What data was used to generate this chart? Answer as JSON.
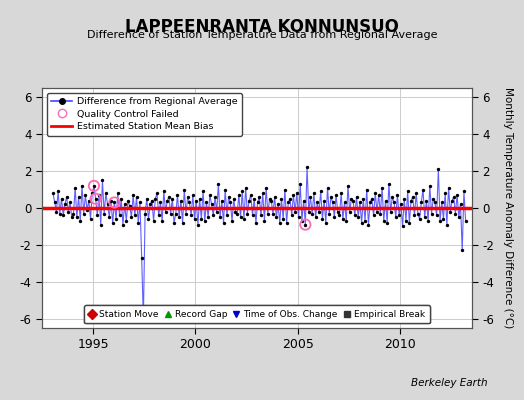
{
  "title": "LAPPEENRANTA KONNUNSUO",
  "subtitle": "Difference of Station Temperature Data from Regional Average",
  "ylabel": "Monthly Temperature Anomaly Difference (°C)",
  "xlabel_note": "Berkeley Earth",
  "ylim": [
    -6.5,
    6.5
  ],
  "yticks": [
    -6,
    -4,
    -2,
    0,
    2,
    4,
    6
  ],
  "xlim": [
    1992.5,
    2013.5
  ],
  "xticks": [
    1995,
    2000,
    2005,
    2010
  ],
  "bias_line": 0.0,
  "line_color": "#4444ff",
  "dot_color": "#000000",
  "bias_color": "#ff0000",
  "qc_color": "#ff69b4",
  "background_color": "#d8d8d8",
  "plot_bg_color": "#ffffff",
  "grid_color": "#cccccc",
  "times": [
    1993.042,
    1993.125,
    1993.208,
    1993.292,
    1993.375,
    1993.458,
    1993.542,
    1993.625,
    1993.708,
    1993.792,
    1993.875,
    1993.958,
    1994.042,
    1994.125,
    1994.208,
    1994.292,
    1994.375,
    1994.458,
    1994.542,
    1994.625,
    1994.708,
    1994.792,
    1994.875,
    1994.958,
    1995.042,
    1995.125,
    1995.208,
    1995.292,
    1995.375,
    1995.458,
    1995.542,
    1995.625,
    1995.708,
    1995.792,
    1995.875,
    1995.958,
    1996.042,
    1996.125,
    1996.208,
    1996.292,
    1996.375,
    1996.458,
    1996.542,
    1996.625,
    1996.708,
    1996.792,
    1996.875,
    1996.958,
    1997.042,
    1997.125,
    1997.208,
    1997.292,
    1997.375,
    1997.458,
    1997.542,
    1997.625,
    1997.708,
    1997.792,
    1997.875,
    1997.958,
    1998.042,
    1998.125,
    1998.208,
    1998.292,
    1998.375,
    1998.458,
    1998.542,
    1998.625,
    1998.708,
    1998.792,
    1998.875,
    1998.958,
    1999.042,
    1999.125,
    1999.208,
    1999.292,
    1999.375,
    1999.458,
    1999.542,
    1999.625,
    1999.708,
    1999.792,
    1999.875,
    1999.958,
    2000.042,
    2000.125,
    2000.208,
    2000.292,
    2000.375,
    2000.458,
    2000.542,
    2000.625,
    2000.708,
    2000.792,
    2000.875,
    2000.958,
    2001.042,
    2001.125,
    2001.208,
    2001.292,
    2001.375,
    2001.458,
    2001.542,
    2001.625,
    2001.708,
    2001.792,
    2001.875,
    2001.958,
    2002.042,
    2002.125,
    2002.208,
    2002.292,
    2002.375,
    2002.458,
    2002.542,
    2002.625,
    2002.708,
    2002.792,
    2002.875,
    2002.958,
    2003.042,
    2003.125,
    2003.208,
    2003.292,
    2003.375,
    2003.458,
    2003.542,
    2003.625,
    2003.708,
    2003.792,
    2003.875,
    2003.958,
    2004.042,
    2004.125,
    2004.208,
    2004.292,
    2004.375,
    2004.458,
    2004.542,
    2004.625,
    2004.708,
    2004.792,
    2004.875,
    2004.958,
    2005.042,
    2005.125,
    2005.208,
    2005.292,
    2005.375,
    2005.458,
    2005.542,
    2005.625,
    2005.708,
    2005.792,
    2005.875,
    2005.958,
    2006.042,
    2006.125,
    2006.208,
    2006.292,
    2006.375,
    2006.458,
    2006.542,
    2006.625,
    2006.708,
    2006.792,
    2006.875,
    2006.958,
    2007.042,
    2007.125,
    2007.208,
    2007.292,
    2007.375,
    2007.458,
    2007.542,
    2007.625,
    2007.708,
    2007.792,
    2007.875,
    2007.958,
    2008.042,
    2008.125,
    2008.208,
    2008.292,
    2008.375,
    2008.458,
    2008.542,
    2008.625,
    2008.708,
    2008.792,
    2008.875,
    2008.958,
    2009.042,
    2009.125,
    2009.208,
    2009.292,
    2009.375,
    2009.458,
    2009.542,
    2009.625,
    2009.708,
    2009.792,
    2009.875,
    2009.958,
    2010.042,
    2010.125,
    2010.208,
    2010.292,
    2010.375,
    2010.458,
    2010.542,
    2010.625,
    2010.708,
    2010.792,
    2010.875,
    2010.958,
    2011.042,
    2011.125,
    2011.208,
    2011.292,
    2011.375,
    2011.458,
    2011.542,
    2011.625,
    2011.708,
    2011.792,
    2011.875,
    2011.958,
    2012.042,
    2012.125,
    2012.208,
    2012.292,
    2012.375,
    2012.458,
    2012.542,
    2012.625,
    2012.708,
    2012.792,
    2012.875,
    2012.958,
    2013.042,
    2013.125,
    2013.208
  ],
  "values": [
    0.8,
    0.3,
    -0.2,
    0.9,
    -0.3,
    0.5,
    -0.4,
    0.2,
    0.6,
    -0.2,
    0.3,
    -0.5,
    -0.3,
    1.1,
    -0.5,
    0.6,
    -0.7,
    1.2,
    -0.3,
    0.7,
    -0.1,
    0.4,
    -0.6,
    0.8,
    1.2,
    0.5,
    -0.4,
    0.7,
    -0.9,
    1.5,
    -0.3,
    0.8,
    0.2,
    -0.5,
    0.4,
    -0.8,
    0.3,
    -0.6,
    0.8,
    -0.4,
    0.5,
    -0.9,
    0.2,
    -0.7,
    0.4,
    0.1,
    -0.5,
    0.7,
    -0.4,
    0.6,
    -0.8,
    0.3,
    -2.7,
    -6.0,
    -0.3,
    0.5,
    -0.6,
    0.2,
    0.4,
    -0.7,
    0.5,
    0.8,
    -0.4,
    0.3,
    -0.7,
    0.9,
    -0.2,
    0.4,
    0.6,
    -0.3,
    0.5,
    -0.8,
    -0.3,
    0.7,
    -0.5,
    0.4,
    -0.8,
    1.0,
    -0.3,
    0.6,
    0.3,
    -0.4,
    0.7,
    -0.6,
    0.4,
    -0.9,
    0.5,
    -0.6,
    0.9,
    -0.7,
    0.3,
    -0.5,
    0.7,
    0.2,
    -0.4,
    0.6,
    -0.2,
    1.3,
    -0.5,
    0.4,
    -0.8,
    1.0,
    -0.4,
    0.6,
    0.3,
    -0.7,
    0.5,
    -0.2,
    -0.3,
    0.7,
    -0.5,
    0.9,
    -0.6,
    1.1,
    -0.3,
    0.4,
    0.7,
    -0.4,
    0.5,
    -0.8,
    0.3,
    0.6,
    -0.4,
    0.8,
    -0.7,
    1.1,
    -0.3,
    0.5,
    0.4,
    -0.3,
    0.6,
    -0.5,
    0.2,
    -0.8,
    0.5,
    -0.6,
    1.0,
    -0.8,
    0.3,
    0.5,
    -0.4,
    0.7,
    -0.2,
    0.8,
    -0.5,
    1.3,
    -0.7,
    0.4,
    -0.9,
    2.2,
    -0.2,
    0.6,
    -0.3,
    0.8,
    -0.5,
    0.3,
    -0.2,
    0.9,
    -0.6,
    0.4,
    -0.8,
    1.1,
    -0.3,
    0.6,
    0.3,
    -0.5,
    0.7,
    -0.2,
    -0.4,
    0.8,
    -0.6,
    0.3,
    -0.7,
    1.2,
    -0.2,
    0.5,
    0.4,
    -0.4,
    0.6,
    -0.5,
    0.3,
    -0.8,
    0.5,
    -0.7,
    1.0,
    -0.9,
    0.3,
    0.5,
    -0.4,
    0.8,
    -0.2,
    0.7,
    -0.3,
    1.1,
    -0.7,
    0.4,
    -0.8,
    1.3,
    -0.2,
    0.6,
    0.3,
    -0.5,
    0.7,
    -0.4,
    0.2,
    -1.0,
    0.5,
    -0.7,
    0.9,
    -0.8,
    0.4,
    0.6,
    -0.4,
    0.8,
    -0.3,
    -0.6,
    0.3,
    1.0,
    -0.5,
    0.4,
    -0.7,
    1.2,
    -0.3,
    0.5,
    0.3,
    -0.4,
    2.1,
    -0.7,
    0.3,
    -0.6,
    0.8,
    -0.9,
    1.1,
    -0.2,
    0.4,
    0.6,
    -0.3,
    0.7,
    -0.5,
    0.2,
    -2.3,
    0.9,
    -0.7
  ],
  "qc_failed_times": [
    1995.042,
    1995.125,
    1996.042,
    2005.375
  ],
  "legend1_labels": [
    "Difference from Regional Average",
    "Quality Control Failed",
    "Estimated Station Mean Bias"
  ],
  "legend2_labels": [
    "Station Move",
    "Record Gap",
    "Time of Obs. Change",
    "Empirical Break"
  ],
  "legend2_markers": [
    "D",
    "^",
    "v",
    "s"
  ],
  "legend2_colors": [
    "#cc0000",
    "#009900",
    "#0000cc",
    "#333333"
  ]
}
